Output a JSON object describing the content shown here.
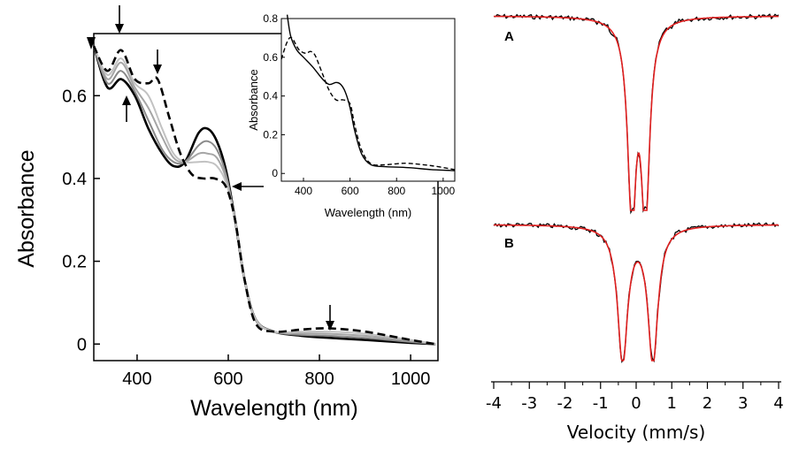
{
  "chart_data": [
    {
      "type": "line",
      "xlabel": "Wavelength (nm)",
      "ylabel": "Absorbance",
      "xlim": [
        305,
        1060
      ],
      "ylim": [
        -0.04,
        0.75
      ],
      "xticks": [
        "400",
        "600",
        "800",
        "1000"
      ],
      "yticks": [
        "0",
        "0.2",
        "0.4",
        "0.6"
      ],
      "grid": false,
      "series": [
        {
          "style": "solid-black",
          "x": [
            305,
            335,
            365,
            395,
            425,
            455,
            480,
            505,
            535,
            555,
            575,
            595,
            615,
            635,
            660,
            700,
            760,
            820,
            900,
            1000,
            1055
          ],
          "y": [
            0.72,
            0.62,
            0.64,
            0.6,
            0.52,
            0.46,
            0.43,
            0.44,
            0.51,
            0.52,
            0.49,
            0.42,
            0.3,
            0.16,
            0.06,
            0.03,
            0.02,
            0.015,
            0.01,
            0.003,
            0.0
          ]
        },
        {
          "style": "gray-1",
          "x": [
            305,
            335,
            365,
            395,
            425,
            455,
            480,
            505,
            535,
            555,
            575,
            595,
            615,
            635,
            660,
            700,
            760,
            820,
            900,
            1000,
            1055
          ],
          "y": [
            0.72,
            0.63,
            0.66,
            0.61,
            0.54,
            0.47,
            0.44,
            0.44,
            0.48,
            0.49,
            0.47,
            0.41,
            0.3,
            0.16,
            0.06,
            0.03,
            0.022,
            0.02,
            0.015,
            0.005,
            0.0
          ]
        },
        {
          "style": "gray-2",
          "x": [
            305,
            335,
            365,
            395,
            425,
            455,
            480,
            505,
            535,
            555,
            575,
            595,
            615,
            635,
            660,
            700,
            760,
            820,
            900,
            1000,
            1055
          ],
          "y": [
            0.72,
            0.64,
            0.68,
            0.62,
            0.57,
            0.5,
            0.45,
            0.44,
            0.46,
            0.46,
            0.45,
            0.4,
            0.3,
            0.16,
            0.06,
            0.03,
            0.026,
            0.025,
            0.02,
            0.008,
            0.0
          ]
        },
        {
          "style": "gray-3",
          "x": [
            305,
            335,
            365,
            395,
            425,
            455,
            480,
            505,
            535,
            555,
            575,
            595,
            615,
            635,
            660,
            700,
            760,
            820,
            900,
            1000,
            1055
          ],
          "y": [
            0.72,
            0.65,
            0.69,
            0.63,
            0.6,
            0.52,
            0.46,
            0.44,
            0.44,
            0.44,
            0.43,
            0.39,
            0.3,
            0.16,
            0.06,
            0.03,
            0.03,
            0.03,
            0.025,
            0.01,
            0.0
          ]
        },
        {
          "style": "dashed-black",
          "x": [
            305,
            335,
            365,
            395,
            425,
            445,
            470,
            495,
            520,
            545,
            570,
            595,
            615,
            635,
            660,
            700,
            760,
            820,
            900,
            1000,
            1055
          ],
          "y": [
            0.72,
            0.66,
            0.71,
            0.64,
            0.63,
            0.64,
            0.55,
            0.46,
            0.41,
            0.4,
            0.4,
            0.38,
            0.3,
            0.16,
            0.05,
            0.03,
            0.035,
            0.038,
            0.03,
            0.01,
            0.0
          ]
        }
      ],
      "arrows": [
        "down",
        "down",
        "up",
        "left",
        "down"
      ]
    },
    {
      "type": "line",
      "xlabel": "Wavelength (nm)",
      "ylabel": "Absorbance",
      "xlim": [
        305,
        1050
      ],
      "ylim": [
        -0.04,
        0.8
      ],
      "xticks": [
        "400",
        "600",
        "800",
        "1000"
      ],
      "yticks": [
        "0",
        "0.2",
        "0.4",
        "0.6",
        "0.8"
      ],
      "series": [
        {
          "style": "solid-black",
          "x": [
            330,
            345,
            370,
            400,
            440,
            480,
            510,
            540,
            560,
            580,
            600,
            620,
            650,
            690,
            750,
            850,
            950,
            1050
          ],
          "y": [
            0.82,
            0.71,
            0.64,
            0.6,
            0.55,
            0.49,
            0.46,
            0.47,
            0.46,
            0.42,
            0.34,
            0.22,
            0.1,
            0.045,
            0.035,
            0.03,
            0.02,
            0.015
          ]
        },
        {
          "style": "dashed-black",
          "x": [
            305,
            330,
            350,
            380,
            410,
            430,
            450,
            480,
            510,
            540,
            570,
            600,
            620,
            650,
            690,
            750,
            800,
            850,
            950,
            1050
          ],
          "y": [
            0.59,
            0.68,
            0.7,
            0.64,
            0.62,
            0.63,
            0.61,
            0.52,
            0.43,
            0.38,
            0.38,
            0.36,
            0.25,
            0.12,
            0.05,
            0.045,
            0.05,
            0.052,
            0.04,
            0.02
          ]
        }
      ]
    },
    {
      "type": "line",
      "xlabel": "Velocity (mm/s)",
      "xlim": [
        -4,
        4
      ],
      "xticks": [
        "-4",
        "-3",
        "-2",
        "-1",
        "0",
        "1",
        "2",
        "3",
        "4"
      ],
      "panels": [
        {
          "label": "A",
          "fit_color": "#e02020",
          "peaks": [
            {
              "center": -0.12,
              "width": 0.14,
              "depth": 1.0
            },
            {
              "center": 0.26,
              "width": 0.14,
              "depth": 1.0
            }
          ]
        },
        {
          "label": "B",
          "fit_color": "#e02020",
          "peaks": [
            {
              "center": -0.38,
              "width": 0.17,
              "depth": 1.0
            },
            {
              "center": 0.47,
              "width": 0.17,
              "depth": 1.0
            }
          ]
        }
      ]
    }
  ]
}
